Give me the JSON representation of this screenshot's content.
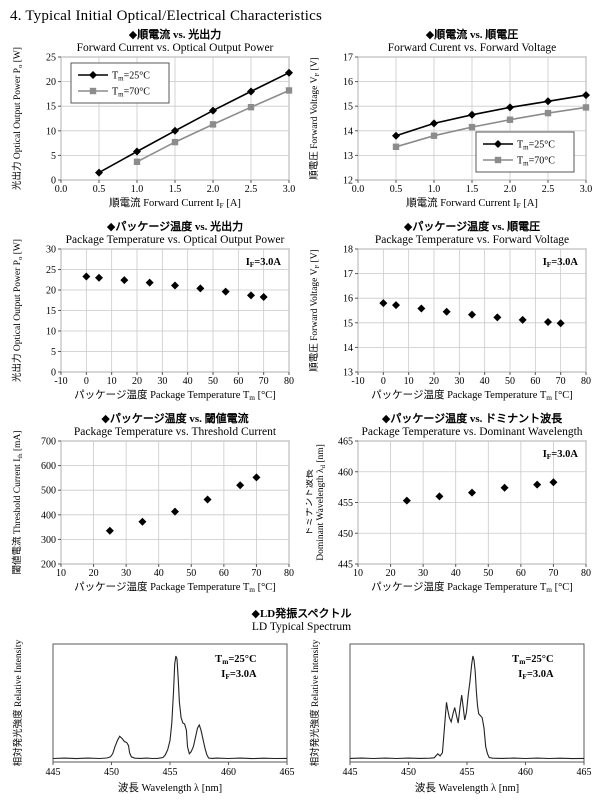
{
  "page": {
    "title": "4.  Typical Initial Optical/Electrical Characteristics"
  },
  "spectrum_section": {
    "title_jp": "◆LD発振スペクトル",
    "title_en": "LD Typical Spectrum"
  },
  "colors": {
    "series_25c": "#000000",
    "series_70c": "#8c8c8c",
    "grid": "#c9c9c9",
    "frame": "#595959",
    "spectrum_line": "#222222",
    "text": "#000000"
  },
  "chart_data": [
    {
      "id": "forward-current-vs-optical-output-power",
      "type": "line",
      "title_jp": "◆順電流 vs. 光出力",
      "title_en": "Forward Current vs. Optical Output Power",
      "xlabel": "順電流  Forward Current I_{F} [A]",
      "ylabel": "光出力 Optical Output Power P_{o} [W]",
      "xlim": [
        0,
        3
      ],
      "ylim": [
        0,
        25
      ],
      "xticks": [
        0,
        0.5,
        1,
        1.5,
        2,
        2.5,
        3
      ],
      "xtick_labels": [
        "0.0",
        "0.5",
        "1.0",
        "1.5",
        "2.0",
        "2.5",
        "3.0"
      ],
      "yticks": [
        0,
        5,
        10,
        15,
        20,
        25
      ],
      "grid": true,
      "legend": {
        "position": "top-left"
      },
      "series": [
        {
          "name": "T_{m}=25°C",
          "color": "#000000",
          "marker": "diamond",
          "x": [
            0.5,
            1.0,
            1.5,
            2.0,
            2.5,
            3.0
          ],
          "y": [
            1.5,
            5.8,
            10.0,
            14.1,
            18.0,
            21.8
          ]
        },
        {
          "name": "T_{m}=70°C",
          "color": "#8c8c8c",
          "marker": "square",
          "x": [
            1.0,
            1.5,
            2.0,
            2.5,
            3.0
          ],
          "y": [
            3.7,
            7.7,
            11.3,
            14.8,
            18.2
          ]
        }
      ]
    },
    {
      "id": "forward-current-vs-forward-voltage",
      "type": "line",
      "title_jp": "◆順電流 vs. 順電圧",
      "title_en": "Forward Curent vs. Forward Voltage",
      "xlabel": "順電流  Forward Current I_{F} [A]",
      "ylabel": "順電圧 Forward Voltage V_{F} [V]",
      "xlim": [
        0,
        3
      ],
      "ylim": [
        12,
        17
      ],
      "xticks": [
        0,
        0.5,
        1,
        1.5,
        2,
        2.5,
        3
      ],
      "xtick_labels": [
        "0.0",
        "0.5",
        "1.0",
        "1.5",
        "2.0",
        "2.5",
        "3.0"
      ],
      "yticks": [
        12,
        13,
        14,
        15,
        16,
        17
      ],
      "grid": true,
      "legend": {
        "position": "bottom-right"
      },
      "series": [
        {
          "name": "T_{m}=25°C",
          "color": "#000000",
          "marker": "diamond",
          "x": [
            0.5,
            1.0,
            1.5,
            2.0,
            2.5,
            3.0
          ],
          "y": [
            13.8,
            14.3,
            14.65,
            14.95,
            15.2,
            15.45
          ]
        },
        {
          "name": "T_{m}=70°C",
          "color": "#8c8c8c",
          "marker": "square",
          "x": [
            0.5,
            1.0,
            1.5,
            2.0,
            2.5,
            3.0
          ],
          "y": [
            13.35,
            13.8,
            14.15,
            14.45,
            14.72,
            14.95
          ]
        }
      ]
    },
    {
      "id": "package-temperature-vs-optical-output-power",
      "type": "scatter",
      "title_jp": "◆パッケージ温度 vs. 光出力",
      "title_en": "Package Temperature vs. Optical Output Power",
      "xlabel": "パッケージ温度  Package Temperature T_{m} [°C]",
      "ylabel": "光出力 Optical Output Power P_{o} [W]",
      "xlim": [
        -10,
        80
      ],
      "ylim": [
        0,
        30
      ],
      "xticks": [
        -10,
        0,
        10,
        20,
        30,
        40,
        50,
        60,
        70,
        80
      ],
      "yticks": [
        0,
        5,
        10,
        15,
        20,
        25,
        30
      ],
      "grid": true,
      "annotation": [
        "I_{F}=3.0A"
      ],
      "series": [
        {
          "name": "P_{o}",
          "color": "#000000",
          "marker": "diamond",
          "x": [
            0,
            5,
            15,
            25,
            35,
            45,
            55,
            65,
            70
          ],
          "y": [
            23.3,
            23.0,
            22.4,
            21.8,
            21.1,
            20.4,
            19.6,
            18.7,
            18.3
          ]
        }
      ]
    },
    {
      "id": "package-temperature-vs-forward-voltage",
      "type": "scatter",
      "title_jp": "◆パッケージ温度 vs. 順電圧",
      "title_en": "Package Temperature vs. Forward Voltage",
      "xlabel": "パッケージ温度  Package Temperature T_{m} [°C]",
      "ylabel": "順電圧 Forward Voltage V_{F} [V]",
      "xlim": [
        -10,
        80
      ],
      "ylim": [
        13,
        18
      ],
      "xticks": [
        -10,
        0,
        10,
        20,
        30,
        40,
        50,
        60,
        70,
        80
      ],
      "yticks": [
        13,
        14,
        15,
        16,
        17,
        18
      ],
      "grid": true,
      "annotation": [
        "I_{F}=3.0A"
      ],
      "series": [
        {
          "name": "V_{F}",
          "color": "#000000",
          "marker": "diamond",
          "x": [
            0,
            5,
            15,
            25,
            35,
            45,
            55,
            65,
            70
          ],
          "y": [
            15.8,
            15.72,
            15.58,
            15.45,
            15.33,
            15.22,
            15.12,
            15.03,
            14.98
          ]
        }
      ]
    },
    {
      "id": "package-temperature-vs-threshold-current",
      "type": "scatter",
      "title_jp": "◆パッケージ温度 vs. 閾値電流",
      "title_en": "Package Temperature vs. Threshold Current",
      "xlabel": "パッケージ温度 Package Temperature T_{m} [°C]",
      "ylabel": "閾値電流 Threshold Current I_{th} [mA]",
      "xlim": [
        10,
        80
      ],
      "ylim": [
        200,
        700
      ],
      "xticks": [
        10,
        20,
        30,
        40,
        50,
        60,
        70,
        80
      ],
      "yticks": [
        200,
        300,
        400,
        500,
        600,
        700
      ],
      "grid": true,
      "series": [
        {
          "name": "I_{th}",
          "color": "#000000",
          "marker": "diamond",
          "x": [
            25,
            35,
            45,
            55,
            65,
            70
          ],
          "y": [
            335,
            372,
            413,
            462,
            520,
            552
          ]
        }
      ]
    },
    {
      "id": "package-temperature-vs-dominant-wavelength",
      "type": "scatter",
      "title_jp": "◆パッケージ温度 vs. ドミナント波長",
      "title_en": "Package Temperature vs. Dominant Wavelength",
      "xlabel": "パッケージ温度 Package Temperature T_{m} [°C]",
      "ylabel_line1": "ドミナント波長",
      "ylabel_line2": "Dominant Wavelength λ_{d} [nm]",
      "xlim": [
        10,
        80
      ],
      "ylim": [
        445,
        465
      ],
      "xticks": [
        10,
        20,
        30,
        40,
        50,
        60,
        70,
        80
      ],
      "yticks": [
        445,
        450,
        455,
        460,
        465
      ],
      "grid": true,
      "annotation": [
        "I_{F}=3.0A"
      ],
      "series": [
        {
          "name": "λ_{d}",
          "color": "#000000",
          "marker": "diamond",
          "x": [
            25,
            35,
            45,
            55,
            65,
            70
          ],
          "y": [
            455.3,
            456.0,
            456.6,
            457.4,
            457.9,
            458.3
          ]
        }
      ]
    },
    {
      "id": "ld-spectrum-left",
      "type": "curve",
      "xlabel": "波長 Wavelength  λ [nm]",
      "ylabel": "相対発光強度 Relative Intensity",
      "xlim": [
        445,
        465
      ],
      "xticks": [
        445,
        450,
        455,
        460,
        465
      ],
      "grid": false,
      "annotation": [
        "T_{m}=25°C",
        "I_{F}=3.0A"
      ],
      "curve": [
        [
          445,
          0.005
        ],
        [
          446,
          0.009
        ],
        [
          447,
          0.004
        ],
        [
          448,
          0.009
        ],
        [
          449,
          0.005
        ],
        [
          449.6,
          0.01
        ],
        [
          449.9,
          0.02
        ],
        [
          450.1,
          0.05
        ],
        [
          450.3,
          0.12
        ],
        [
          450.5,
          0.18
        ],
        [
          450.7,
          0.22
        ],
        [
          450.9,
          0.2
        ],
        [
          451.1,
          0.17
        ],
        [
          451.3,
          0.16
        ],
        [
          451.45,
          0.13
        ],
        [
          451.55,
          0.06
        ],
        [
          451.7,
          0.02
        ],
        [
          452,
          0.008
        ],
        [
          452.5,
          0.006
        ],
        [
          453,
          0.009
        ],
        [
          453.5,
          0.005
        ],
        [
          454,
          0.007
        ],
        [
          454.4,
          0.015
        ],
        [
          454.6,
          0.04
        ],
        [
          454.8,
          0.09
        ],
        [
          455,
          0.18
        ],
        [
          455.15,
          0.35
        ],
        [
          455.3,
          0.65
        ],
        [
          455.4,
          0.92
        ],
        [
          455.5,
          1.0
        ],
        [
          455.6,
          0.97
        ],
        [
          455.7,
          0.78
        ],
        [
          455.8,
          0.55
        ],
        [
          455.95,
          0.4
        ],
        [
          456.1,
          0.35
        ],
        [
          456.25,
          0.34
        ],
        [
          456.4,
          0.28
        ],
        [
          456.5,
          0.12
        ],
        [
          456.65,
          0.05
        ],
        [
          456.8,
          0.07
        ],
        [
          457,
          0.12
        ],
        [
          457.2,
          0.22
        ],
        [
          457.35,
          0.3
        ],
        [
          457.5,
          0.33
        ],
        [
          457.65,
          0.28
        ],
        [
          457.8,
          0.2
        ],
        [
          458,
          0.1
        ],
        [
          458.15,
          0.04
        ],
        [
          458.3,
          0.01
        ],
        [
          458.6,
          0.006
        ],
        [
          459,
          0.009
        ],
        [
          460,
          0.005
        ],
        [
          461,
          0.009
        ],
        [
          462,
          0.004
        ],
        [
          463,
          0.008
        ],
        [
          464,
          0.005
        ],
        [
          465,
          0.006
        ]
      ]
    },
    {
      "id": "ld-spectrum-right",
      "type": "curve",
      "xlabel": "波長 Wavelength  λ [nm]",
      "ylabel": "相対発光強度 Relative Intensity",
      "xlim": [
        445,
        465
      ],
      "xticks": [
        445,
        450,
        455,
        460,
        465
      ],
      "grid": false,
      "annotation": [
        "T_{m}=25°C",
        "I_{F}=3.0A"
      ],
      "curve": [
        [
          445,
          0.006
        ],
        [
          446,
          0.009
        ],
        [
          447,
          0.005
        ],
        [
          448,
          0.009
        ],
        [
          449,
          0.005
        ],
        [
          450,
          0.009
        ],
        [
          451,
          0.006
        ],
        [
          451.8,
          0.008
        ],
        [
          452.2,
          0.012
        ],
        [
          452.5,
          0.05
        ],
        [
          452.7,
          0.03
        ],
        [
          452.9,
          0.06
        ],
        [
          453,
          0.2
        ],
        [
          453.15,
          0.42
        ],
        [
          453.25,
          0.55
        ],
        [
          453.35,
          0.48
        ],
        [
          453.5,
          0.4
        ],
        [
          453.65,
          0.36
        ],
        [
          453.8,
          0.44
        ],
        [
          453.95,
          0.5
        ],
        [
          454.1,
          0.42
        ],
        [
          454.25,
          0.35
        ],
        [
          454.4,
          0.5
        ],
        [
          454.55,
          0.62
        ],
        [
          454.7,
          0.48
        ],
        [
          454.8,
          0.38
        ],
        [
          454.95,
          0.45
        ],
        [
          455.1,
          0.62
        ],
        [
          455.25,
          0.75
        ],
        [
          455.4,
          0.92
        ],
        [
          455.5,
          1.0
        ],
        [
          455.6,
          0.96
        ],
        [
          455.7,
          0.85
        ],
        [
          455.8,
          0.65
        ],
        [
          455.9,
          0.52
        ],
        [
          456,
          0.44
        ],
        [
          456.15,
          0.42
        ],
        [
          456.3,
          0.4
        ],
        [
          456.45,
          0.3
        ],
        [
          456.6,
          0.12
        ],
        [
          456.75,
          0.05
        ],
        [
          456.9,
          0.015
        ],
        [
          457.2,
          0.008
        ],
        [
          458,
          0.006
        ],
        [
          459,
          0.009
        ],
        [
          460,
          0.005
        ],
        [
          461,
          0.009
        ],
        [
          462,
          0.005
        ],
        [
          463,
          0.008
        ],
        [
          464,
          0.004
        ],
        [
          465,
          0.006
        ]
      ]
    }
  ]
}
